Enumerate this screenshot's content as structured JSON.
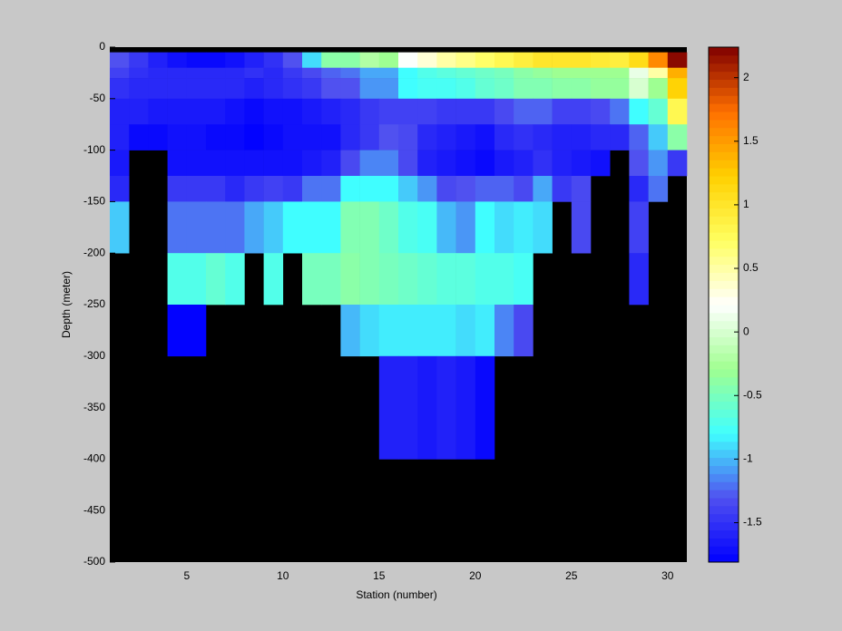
{
  "chart_data": {
    "type": "heatmap",
    "xlabel": "Station (number)",
    "ylabel": "Depth (meter)",
    "x": [
      1,
      2,
      3,
      4,
      5,
      6,
      7,
      8,
      9,
      10,
      11,
      12,
      13,
      14,
      15,
      16,
      17,
      18,
      19,
      20,
      21,
      22,
      23,
      24,
      25,
      26,
      27,
      28,
      29,
      30
    ],
    "y_edges": [
      -5,
      -20,
      -30,
      -50,
      -75,
      -100,
      -125,
      -150,
      -200,
      -250,
      -300,
      -400
    ],
    "values": [
      [
        -1.3,
        -1.45,
        -1.6,
        -1.7,
        -1.75,
        -1.75,
        -1.7,
        -1.6,
        -1.5,
        -1.3,
        -0.9,
        -0.4,
        -0.4,
        -0.2,
        -0.3,
        0.2,
        0.35,
        0.5,
        0.6,
        0.7,
        0.8,
        0.9,
        1.0,
        1.0,
        1.0,
        0.95,
        0.9,
        1.1,
        1.6,
        2.2
      ],
      [
        -1.4,
        -1.5,
        -1.55,
        -1.55,
        -1.55,
        -1.55,
        -1.55,
        -1.5,
        -1.55,
        -1.45,
        -1.35,
        -1.25,
        -1.2,
        -1.05,
        -1.05,
        -0.8,
        -0.7,
        -0.65,
        -0.6,
        -0.55,
        -0.5,
        -0.4,
        -0.35,
        -0.3,
        -0.3,
        -0.3,
        -0.3,
        0.1,
        0.5,
        1.4
      ],
      [
        -1.5,
        -1.55,
        -1.55,
        -1.55,
        -1.55,
        -1.55,
        -1.55,
        -1.6,
        -1.55,
        -1.5,
        -1.45,
        -1.3,
        -1.3,
        -1.1,
        -1.1,
        -0.8,
        -0.75,
        -0.75,
        -0.7,
        -0.6,
        -0.55,
        -0.45,
        -0.45,
        -0.4,
        -0.4,
        -0.35,
        -0.35,
        0.0,
        -0.3,
        1.2
      ],
      [
        -1.6,
        -1.6,
        -1.65,
        -1.65,
        -1.65,
        -1.65,
        -1.7,
        -1.75,
        -1.7,
        -1.7,
        -1.65,
        -1.6,
        -1.55,
        -1.45,
        -1.4,
        -1.4,
        -1.4,
        -1.45,
        -1.45,
        -1.45,
        -1.35,
        -1.25,
        -1.25,
        -1.4,
        -1.4,
        -1.35,
        -1.2,
        -0.8,
        -0.6,
        0.8
      ],
      [
        -1.6,
        -1.75,
        -1.75,
        -1.7,
        -1.7,
        -1.75,
        -1.75,
        -1.8,
        -1.75,
        -1.7,
        -1.7,
        -1.7,
        -1.55,
        -1.45,
        -1.3,
        -1.35,
        -1.55,
        -1.6,
        -1.65,
        -1.7,
        -1.55,
        -1.5,
        -1.55,
        -1.6,
        -1.6,
        -1.55,
        -1.55,
        -1.25,
        -0.95,
        -0.4
      ],
      [
        -1.65,
        null,
        null,
        -1.7,
        -1.7,
        -1.7,
        -1.7,
        -1.7,
        -1.7,
        -1.7,
        -1.65,
        -1.6,
        -1.35,
        -1.15,
        -1.15,
        -1.35,
        -1.6,
        -1.65,
        -1.7,
        -1.75,
        -1.65,
        -1.6,
        -1.5,
        -1.6,
        -1.65,
        -1.7,
        null,
        -1.3,
        -1.1,
        -1.45
      ],
      [
        -1.55,
        null,
        null,
        -1.45,
        -1.45,
        -1.45,
        -1.55,
        -1.45,
        -1.4,
        -1.45,
        -1.2,
        -1.2,
        -0.8,
        -0.8,
        -0.8,
        -0.95,
        -1.1,
        -1.35,
        -1.3,
        -1.25,
        -1.25,
        -1.35,
        -1.05,
        -1.45,
        -1.35,
        null,
        null,
        -1.55,
        -1.2,
        null
      ],
      [
        -0.95,
        null,
        null,
        -1.2,
        -1.2,
        -1.2,
        -1.2,
        -1.05,
        -0.95,
        -0.8,
        -0.8,
        -0.8,
        -0.45,
        -0.45,
        -0.55,
        -0.7,
        -0.75,
        -1.0,
        -1.1,
        -0.8,
        -0.9,
        -0.85,
        -0.9,
        null,
        -1.35,
        null,
        null,
        -1.4,
        null,
        null
      ],
      [
        null,
        null,
        null,
        -0.7,
        -0.7,
        -0.6,
        -0.7,
        null,
        -0.7,
        null,
        -0.5,
        -0.5,
        -0.4,
        -0.45,
        -0.5,
        -0.55,
        -0.6,
        -0.65,
        -0.65,
        -0.7,
        -0.7,
        -0.75,
        null,
        null,
        null,
        null,
        null,
        -1.55,
        null,
        null
      ],
      [
        null,
        null,
        null,
        -1.8,
        -1.8,
        null,
        null,
        null,
        null,
        null,
        null,
        null,
        -1.0,
        -0.9,
        -0.85,
        -0.85,
        -0.85,
        -0.85,
        -0.9,
        -0.85,
        -1.15,
        -1.35,
        null,
        null,
        null,
        null,
        null,
        null,
        null,
        null
      ],
      [
        null,
        null,
        null,
        null,
        null,
        null,
        null,
        null,
        null,
        null,
        null,
        null,
        null,
        null,
        -1.6,
        -1.6,
        -1.65,
        -1.6,
        -1.65,
        -1.75,
        null,
        null,
        null,
        null,
        null,
        null,
        null,
        null,
        null,
        null
      ]
    ],
    "xlim": [
      1,
      31
    ],
    "xticks": [
      5,
      10,
      15,
      20,
      25,
      30
    ],
    "ylim": [
      -500,
      0
    ],
    "yticks": [
      0,
      -50,
      -100,
      -150,
      -200,
      -250,
      -300,
      -350,
      -400,
      -450,
      -500
    ],
    "clim": [
      -1.81,
      2.24
    ],
    "cticks": [
      -1.5,
      -1,
      -0.5,
      0,
      0.5,
      1,
      1.5,
      2
    ],
    "colormap": [
      "#0000ff",
      "#5050f0",
      "#40ffff",
      "#a0ff90",
      "#ffffff",
      "#ffff60",
      "#ffd000",
      "#ff7000",
      "#800000"
    ]
  }
}
